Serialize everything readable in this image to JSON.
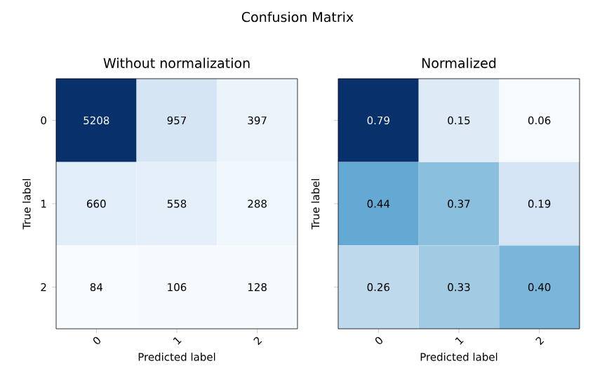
{
  "chart_data": [
    {
      "type": "heatmap",
      "title": "Without normalization",
      "xlabel": "Predicted label",
      "ylabel": "True label",
      "annotations": [
        "Confusion Matrix"
      ],
      "categories": [
        "0",
        "1",
        "2"
      ],
      "y_categories": [
        "0",
        "1",
        "2"
      ],
      "cells": [
        [
          5208,
          957,
          397
        ],
        [
          660,
          558,
          288
        ],
        [
          84,
          106,
          128
        ]
      ],
      "cell_labels": [
        [
          "5208",
          "957",
          "397"
        ],
        [
          "660",
          "558",
          "288"
        ],
        [
          "84",
          "106",
          "128"
        ]
      ]
    },
    {
      "type": "heatmap",
      "title": "Normalized",
      "xlabel": "Predicted label",
      "ylabel": "True label",
      "categories": [
        "0",
        "1",
        "2"
      ],
      "y_categories": [
        "0",
        "1",
        "2"
      ],
      "tick_labels": "x",
      "cells": [
        [
          0.79,
          0.15,
          0.06
        ],
        [
          0.44,
          0.37,
          0.19
        ],
        [
          0.26,
          0.33,
          0.4
        ]
      ],
      "cell_labels": [
        [
          "0.79",
          "0.15",
          "0.06"
        ],
        [
          "0.44",
          "0.37",
          "0.19"
        ],
        [
          "0.26",
          "0.33",
          "0.40"
        ]
      ]
    }
  ]
}
